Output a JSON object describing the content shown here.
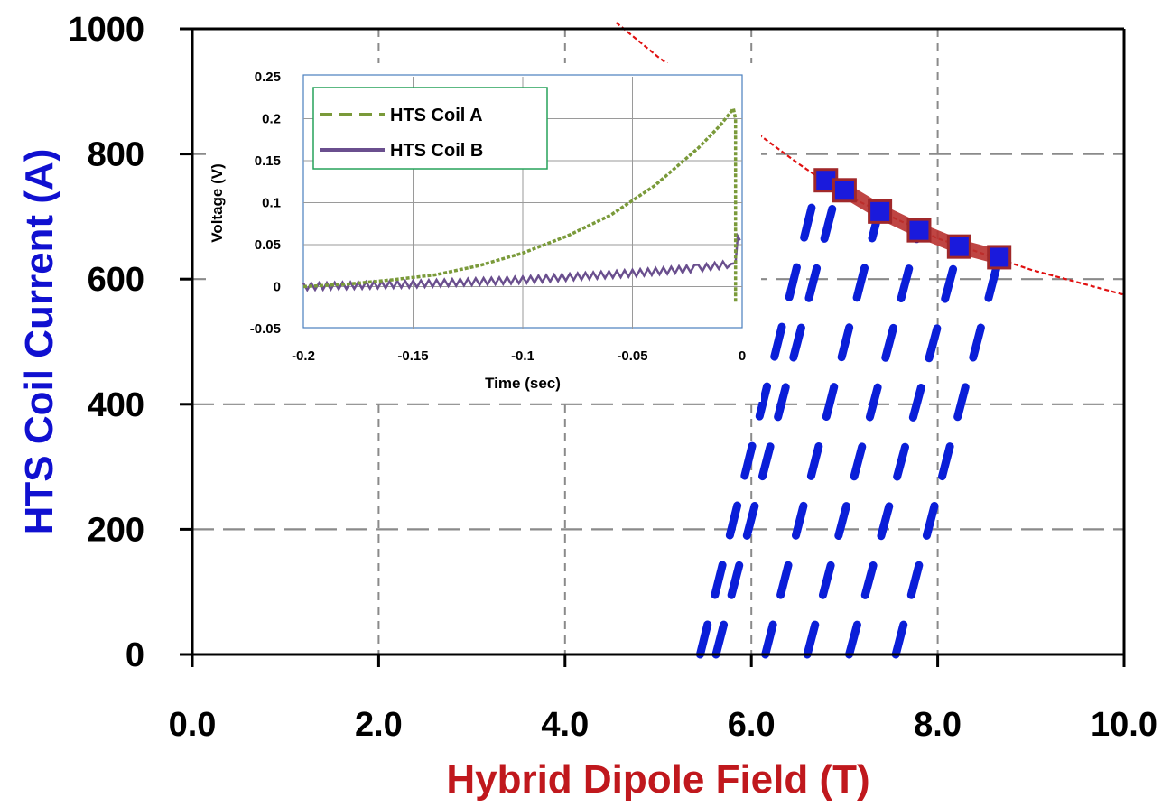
{
  "chart_data": [
    {
      "id": "main",
      "type": "line",
      "title": "",
      "xlabel": "Hybrid Dipole Field (T)",
      "ylabel": "HTS Coil Current (A)",
      "xlim": [
        0,
        10
      ],
      "ylim": [
        0,
        1000
      ],
      "xticks": [
        "0.0",
        "2.0",
        "4.0",
        "6.0",
        "8.0",
        "10.0"
      ],
      "yticks": [
        "0",
        "200",
        "400",
        "600",
        "800",
        "1000"
      ],
      "grid": true,
      "legend": "none",
      "colors": {
        "xlabel": "#c0181d",
        "ylabel": "#1010d0",
        "ramps": "#0a1ed8",
        "markers_fill": "#1a1adc",
        "markers_edge": "#a0282a",
        "fit_line": "#e01010",
        "band": "#b8312f"
      },
      "series": [
        {
          "role": "ramp",
          "x": [
            5.45,
            6.72
          ],
          "y": [
            0,
            758
          ]
        },
        {
          "role": "ramp",
          "x": [
            5.62,
            6.92
          ],
          "y": [
            0,
            742
          ]
        },
        {
          "role": "ramp",
          "x": [
            6.15,
            7.37
          ],
          "y": [
            0,
            708
          ]
        },
        {
          "role": "ramp",
          "x": [
            6.6,
            7.8
          ],
          "y": [
            0,
            678
          ]
        },
        {
          "role": "ramp",
          "x": [
            7.05,
            8.23
          ],
          "y": [
            0,
            652
          ]
        },
        {
          "role": "ramp",
          "x": [
            7.55,
            8.66
          ],
          "y": [
            0,
            635
          ]
        },
        {
          "role": "quench-points",
          "x": [
            6.8,
            7.0,
            7.38,
            7.8,
            8.23,
            8.66
          ],
          "y": [
            758,
            742,
            708,
            678,
            652,
            635
          ]
        },
        {
          "role": "critical-current-fit",
          "x": [
            4.55,
            5.0,
            5.5,
            6.0,
            6.5,
            7.0,
            7.5,
            8.0,
            8.5,
            9.0,
            9.5,
            10.0
          ],
          "y": [
            1010,
            955,
            900,
            840,
            785,
            735,
            700,
            665,
            640,
            615,
            595,
            575
          ]
        }
      ]
    },
    {
      "id": "inset",
      "type": "line",
      "title": "",
      "xlabel": "Time (sec)",
      "ylabel": "Voltage (V)",
      "xlim": [
        -0.2,
        0
      ],
      "ylim": [
        -0.05,
        0.25
      ],
      "xticks": [
        "-0.2",
        "-0.15",
        "-0.1",
        "-0.05",
        "0"
      ],
      "yticks": [
        "-0.05",
        "0",
        "0.05",
        "0.1",
        "0.15",
        "0.2",
        "0.25"
      ],
      "grid": true,
      "legend": "top-left",
      "colors": {
        "coil_a": "#7a9a3a",
        "coil_b": "#6a4f8e",
        "legend_border": "#27a25a",
        "frame": "#4a7fbf"
      },
      "series": [
        {
          "name": "HTS Coil A",
          "x": [
            -0.2,
            -0.18,
            -0.16,
            -0.14,
            -0.12,
            -0.1,
            -0.08,
            -0.06,
            -0.04,
            -0.02,
            -0.01,
            -0.004,
            -0.003,
            -0.003
          ],
          "y": [
            0,
            0.003,
            0.008,
            0.014,
            0.025,
            0.04,
            0.06,
            0.085,
            0.12,
            0.165,
            0.192,
            0.212,
            0.2,
            -0.02
          ]
        },
        {
          "name": "HTS Coil B",
          "x": [
            -0.2,
            -0.15,
            -0.1,
            -0.05,
            -0.02,
            -0.005,
            -0.003,
            -0.002,
            -0.001
          ],
          "y": [
            0,
            0.003,
            0.008,
            0.016,
            0.022,
            0.027,
            0.028,
            0.06,
            0.055
          ]
        }
      ]
    }
  ]
}
